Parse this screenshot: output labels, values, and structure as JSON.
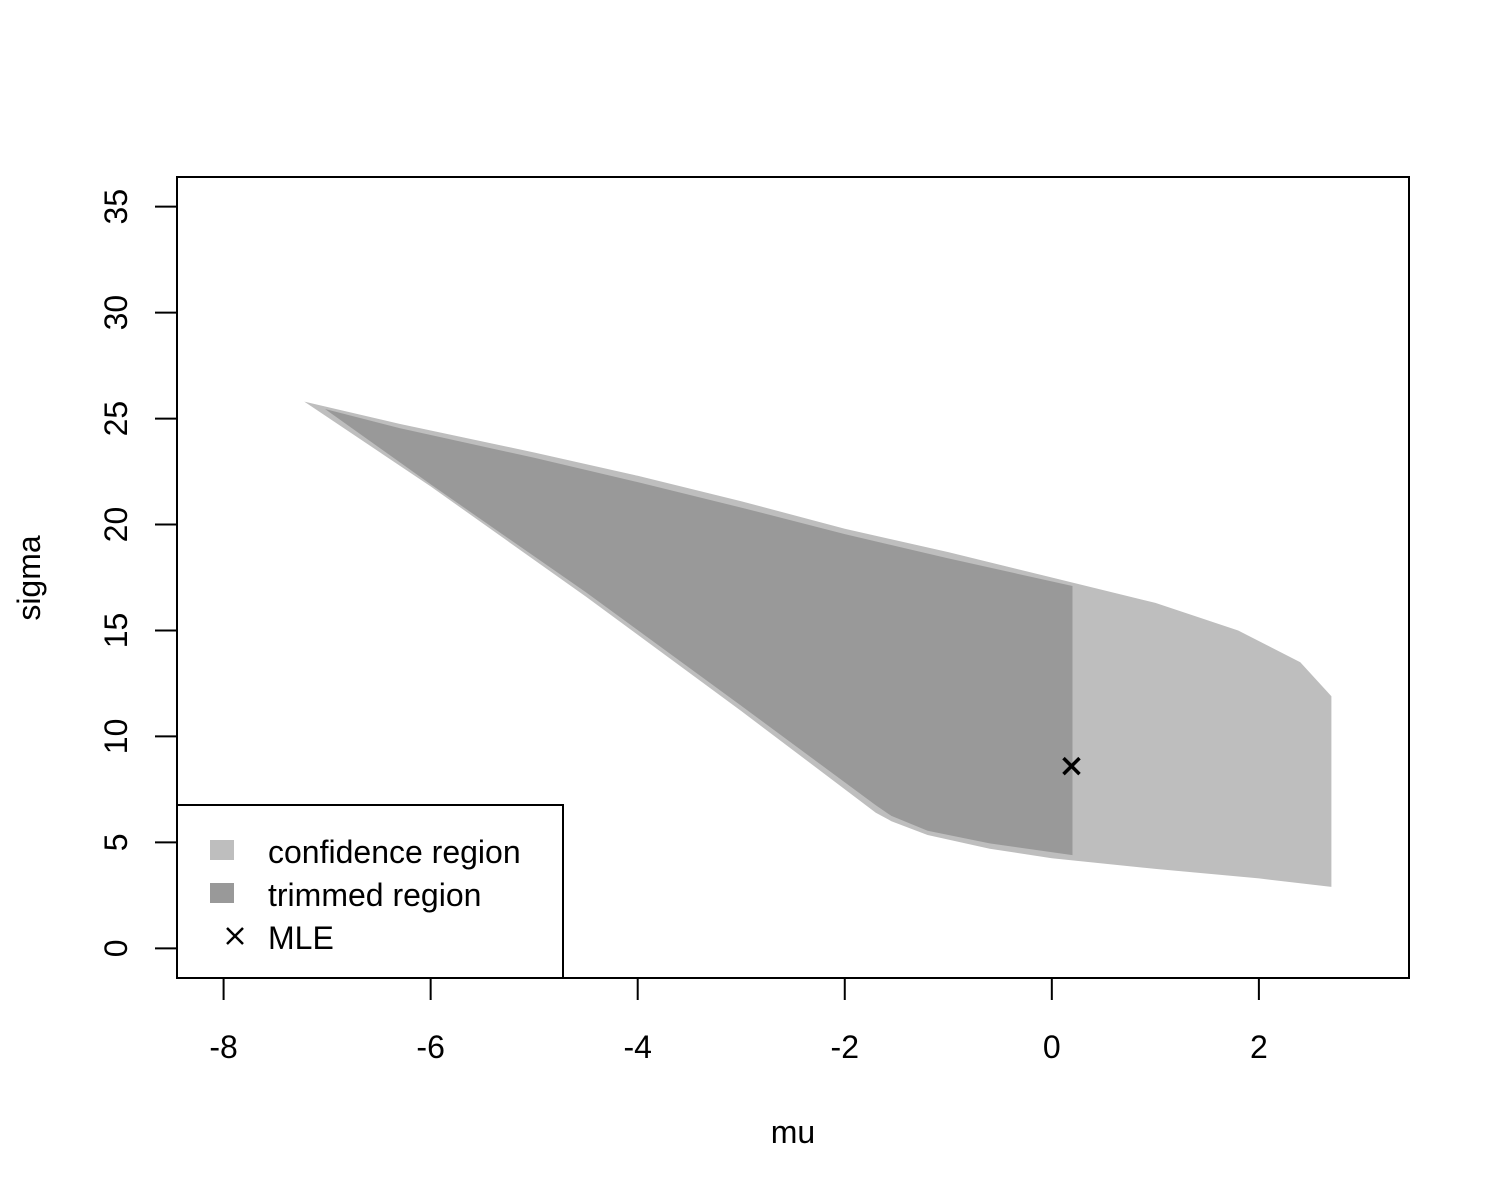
{
  "chart_data": {
    "type": "area",
    "xlabel": "mu",
    "ylabel": "sigma",
    "xlim": [
      -8.45,
      3.45
    ],
    "ylim": [
      -1.4,
      36.4
    ],
    "x_ticks": [
      -8,
      -6,
      -4,
      -2,
      0,
      2
    ],
    "x_tick_labels": [
      "-8",
      "-6",
      "-4",
      "-2",
      "0",
      "2"
    ],
    "y_ticks": [
      0,
      5,
      10,
      15,
      20,
      25,
      30,
      35
    ],
    "y_tick_labels": [
      "0",
      "5",
      "10",
      "15",
      "20",
      "25",
      "30",
      "35"
    ],
    "grid": false,
    "legend_position": "bottom-left",
    "series": [
      {
        "name": "confidence region",
        "kind": "region",
        "color": "#bebebe",
        "points": [
          [
            -7.22,
            25.8
          ],
          [
            -6.3,
            24.75
          ],
          [
            -5.0,
            23.4
          ],
          [
            -4.0,
            22.3
          ],
          [
            -3.0,
            21.1
          ],
          [
            -2.0,
            19.8
          ],
          [
            -1.0,
            18.7
          ],
          [
            0.0,
            17.5
          ],
          [
            1.0,
            16.3
          ],
          [
            1.8,
            15.0
          ],
          [
            2.4,
            13.5
          ],
          [
            2.7,
            11.9
          ],
          [
            2.7,
            2.9
          ],
          [
            2.0,
            3.3
          ],
          [
            1.0,
            3.75
          ],
          [
            0.0,
            4.25
          ],
          [
            -0.6,
            4.7
          ],
          [
            -1.2,
            5.35
          ],
          [
            -1.55,
            6.0
          ],
          [
            -1.7,
            6.4
          ],
          [
            -3.0,
            11.2
          ],
          [
            -4.5,
            16.6
          ],
          [
            -6.0,
            21.8
          ],
          [
            -7.22,
            25.8
          ]
        ]
      },
      {
        "name": "trimmed region",
        "kind": "region",
        "color": "#999999",
        "points": [
          [
            -7.02,
            25.45
          ],
          [
            -6.3,
            24.55
          ],
          [
            -5.0,
            23.15
          ],
          [
            -4.0,
            22.0
          ],
          [
            -3.0,
            20.8
          ],
          [
            -2.0,
            19.55
          ],
          [
            -1.0,
            18.4
          ],
          [
            0.2,
            17.1
          ],
          [
            0.2,
            4.4
          ],
          [
            -0.6,
            4.95
          ],
          [
            -1.2,
            5.55
          ],
          [
            -1.55,
            6.25
          ],
          [
            -1.7,
            6.75
          ],
          [
            -3.0,
            11.45
          ],
          [
            -4.5,
            16.8
          ],
          [
            -6.0,
            21.9
          ],
          [
            -7.02,
            25.45
          ]
        ]
      },
      {
        "name": "MLE",
        "kind": "point",
        "color": "#000000",
        "points": [
          [
            0.19,
            8.6
          ]
        ]
      }
    ],
    "legend": {
      "position": "bottom-left",
      "entries": [
        {
          "label": "confidence region",
          "symbol": "square",
          "color": "#bebebe"
        },
        {
          "label": "trimmed region",
          "symbol": "square",
          "color": "#999999"
        },
        {
          "label": "MLE",
          "symbol": "cross",
          "color": "#000000"
        }
      ]
    }
  }
}
